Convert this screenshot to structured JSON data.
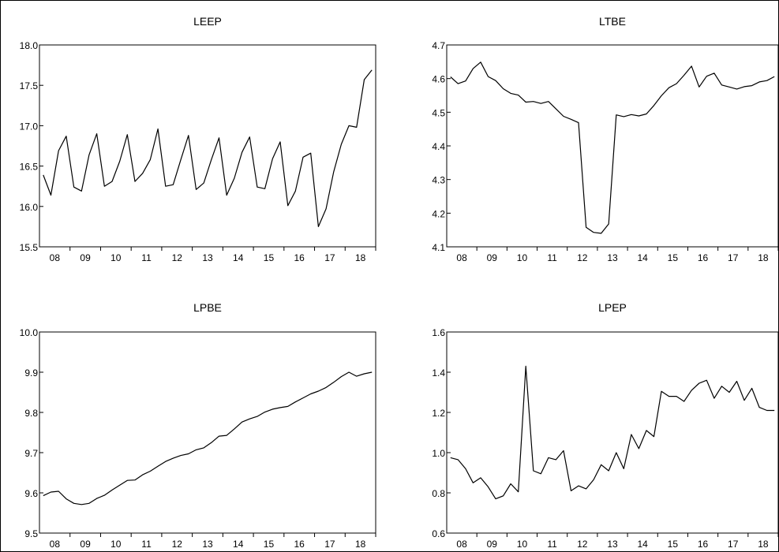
{
  "chart_data": [
    {
      "type": "line",
      "title": "LEEP",
      "xlabel": "",
      "ylabel": "",
      "ylim": [
        15.5,
        18.0
      ],
      "yticks": [
        "15.5",
        "16.0",
        "16.5",
        "17.0",
        "17.5",
        "18.0"
      ],
      "xticks": [
        "08",
        "09",
        "10",
        "11",
        "12",
        "13",
        "14",
        "15",
        "16",
        "17",
        "18"
      ],
      "x": [
        "2008Q1",
        "2008Q2",
        "2008Q3",
        "2008Q4",
        "2009Q1",
        "2009Q2",
        "2009Q3",
        "2009Q4",
        "2010Q1",
        "2010Q2",
        "2010Q3",
        "2010Q4",
        "2011Q1",
        "2011Q2",
        "2011Q3",
        "2011Q4",
        "2012Q1",
        "2012Q2",
        "2012Q3",
        "2012Q4",
        "2013Q1",
        "2013Q2",
        "2013Q3",
        "2013Q4",
        "2014Q1",
        "2014Q2",
        "2014Q3",
        "2014Q4",
        "2015Q1",
        "2015Q2",
        "2015Q3",
        "2015Q4",
        "2016Q1",
        "2016Q2",
        "2016Q3",
        "2016Q4",
        "2017Q1",
        "2017Q2",
        "2017Q3",
        "2017Q4",
        "2018Q1",
        "2018Q2",
        "2018Q3",
        "2018Q4"
      ],
      "values": [
        16.39,
        16.14,
        16.69,
        16.87,
        16.24,
        16.19,
        16.64,
        16.9,
        16.25,
        16.31,
        16.56,
        16.89,
        16.31,
        16.41,
        16.58,
        16.96,
        16.25,
        16.27,
        16.58,
        16.88,
        16.21,
        16.29,
        16.58,
        16.85,
        16.14,
        16.35,
        16.67,
        16.86,
        16.24,
        16.22,
        16.59,
        16.8,
        16.01,
        16.19,
        16.61,
        16.66,
        15.75,
        15.97,
        16.43,
        16.77,
        17.0,
        16.98,
        17.57,
        17.69
      ]
    },
    {
      "type": "line",
      "title": "LTBE",
      "xlabel": "",
      "ylabel": "",
      "ylim": [
        4.1,
        4.7
      ],
      "yticks": [
        "4.1",
        "4.2",
        "4.3",
        "4.4",
        "4.5",
        "4.6",
        "4.7"
      ],
      "xticks": [
        "08",
        "09",
        "10",
        "11",
        "12",
        "13",
        "14",
        "15",
        "16",
        "17",
        "18"
      ],
      "x": [
        "2008Q1",
        "2008Q2",
        "2008Q3",
        "2008Q4",
        "2009Q1",
        "2009Q2",
        "2009Q3",
        "2009Q4",
        "2010Q1",
        "2010Q2",
        "2010Q3",
        "2010Q4",
        "2011Q1",
        "2011Q2",
        "2011Q3",
        "2011Q4",
        "2012Q1",
        "2012Q2",
        "2012Q3",
        "2012Q4",
        "2013Q1",
        "2013Q2",
        "2013Q3",
        "2013Q4",
        "2014Q1",
        "2014Q2",
        "2014Q3",
        "2014Q4",
        "2015Q1",
        "2015Q2",
        "2015Q3",
        "2015Q4",
        "2016Q1",
        "2016Q2",
        "2016Q3",
        "2016Q4",
        "2017Q1",
        "2017Q2",
        "2017Q3",
        "2017Q4",
        "2018Q1",
        "2018Q2",
        "2018Q3",
        "2018Q4"
      ],
      "values": [
        4.605,
        4.585,
        4.593,
        4.63,
        4.649,
        4.606,
        4.594,
        4.57,
        4.556,
        4.551,
        4.53,
        4.532,
        4.526,
        4.532,
        4.51,
        4.488,
        4.479,
        4.469,
        4.158,
        4.143,
        4.14,
        4.168,
        4.492,
        4.487,
        4.493,
        4.489,
        4.495,
        4.52,
        4.549,
        4.573,
        4.585,
        4.61,
        4.637,
        4.575,
        4.607,
        4.616,
        4.581,
        4.575,
        4.569,
        4.576,
        4.579,
        4.59,
        4.594,
        4.606
      ]
    },
    {
      "type": "line",
      "title": "LPBE",
      "xlabel": "",
      "ylabel": "",
      "ylim": [
        9.5,
        10.0
      ],
      "yticks": [
        "9.5",
        "9.6",
        "9.7",
        "9.8",
        "9.9",
        "10.0"
      ],
      "xticks": [
        "08",
        "09",
        "10",
        "11",
        "12",
        "13",
        "14",
        "15",
        "16",
        "17",
        "18"
      ],
      "x": [
        "2008Q1",
        "2008Q2",
        "2008Q3",
        "2008Q4",
        "2009Q1",
        "2009Q2",
        "2009Q3",
        "2009Q4",
        "2010Q1",
        "2010Q2",
        "2010Q3",
        "2010Q4",
        "2011Q1",
        "2011Q2",
        "2011Q3",
        "2011Q4",
        "2012Q1",
        "2012Q2",
        "2012Q3",
        "2012Q4",
        "2013Q1",
        "2013Q2",
        "2013Q3",
        "2013Q4",
        "2014Q1",
        "2014Q2",
        "2014Q3",
        "2014Q4",
        "2015Q1",
        "2015Q2",
        "2015Q3",
        "2015Q4",
        "2016Q1",
        "2016Q2",
        "2016Q3",
        "2016Q4",
        "2017Q1",
        "2017Q2",
        "2017Q3",
        "2017Q4",
        "2018Q1",
        "2018Q2",
        "2018Q3",
        "2018Q4"
      ],
      "values": [
        9.593,
        9.602,
        9.604,
        9.585,
        9.574,
        9.571,
        9.574,
        9.586,
        9.594,
        9.607,
        9.619,
        9.631,
        9.632,
        9.645,
        9.654,
        9.666,
        9.678,
        9.686,
        9.693,
        9.697,
        9.707,
        9.712,
        9.725,
        9.741,
        9.743,
        9.759,
        9.776,
        9.784,
        9.79,
        9.801,
        9.808,
        9.812,
        9.815,
        9.826,
        9.836,
        9.846,
        9.853,
        9.862,
        9.875,
        9.889,
        9.9,
        9.89,
        9.896,
        9.9
      ]
    },
    {
      "type": "line",
      "title": "LPEP",
      "xlabel": "",
      "ylabel": "",
      "ylim": [
        0.6,
        1.6
      ],
      "yticks": [
        "0.6",
        "0.8",
        "1.0",
        "1.2",
        "1.4",
        "1.6"
      ],
      "xticks": [
        "08",
        "09",
        "10",
        "11",
        "12",
        "13",
        "14",
        "15",
        "16",
        "17",
        "18"
      ],
      "x": [
        "2008Q1",
        "2008Q2",
        "2008Q3",
        "2008Q4",
        "2009Q1",
        "2009Q2",
        "2009Q3",
        "2009Q4",
        "2010Q1",
        "2010Q2",
        "2010Q3",
        "2010Q4",
        "2011Q1",
        "2011Q2",
        "2011Q3",
        "2011Q4",
        "2012Q1",
        "2012Q2",
        "2012Q3",
        "2012Q4",
        "2013Q1",
        "2013Q2",
        "2013Q3",
        "2013Q4",
        "2014Q1",
        "2014Q2",
        "2014Q3",
        "2014Q4",
        "2015Q1",
        "2015Q2",
        "2015Q3",
        "2015Q4",
        "2016Q1",
        "2016Q2",
        "2016Q3",
        "2016Q4",
        "2017Q1",
        "2017Q2",
        "2017Q3",
        "2017Q4",
        "2018Q1",
        "2018Q2",
        "2018Q3",
        "2018Q4"
      ],
      "values": [
        0.975,
        0.965,
        0.92,
        0.85,
        0.875,
        0.83,
        0.77,
        0.785,
        0.845,
        0.805,
        1.43,
        0.91,
        0.895,
        0.975,
        0.965,
        1.01,
        0.81,
        0.835,
        0.82,
        0.865,
        0.94,
        0.91,
        1.0,
        0.92,
        1.09,
        1.02,
        1.11,
        1.08,
        1.305,
        1.28,
        1.28,
        1.255,
        1.31,
        1.345,
        1.36,
        1.27,
        1.33,
        1.3,
        1.355,
        1.26,
        1.32,
        1.225,
        1.21,
        1.21
      ]
    }
  ]
}
